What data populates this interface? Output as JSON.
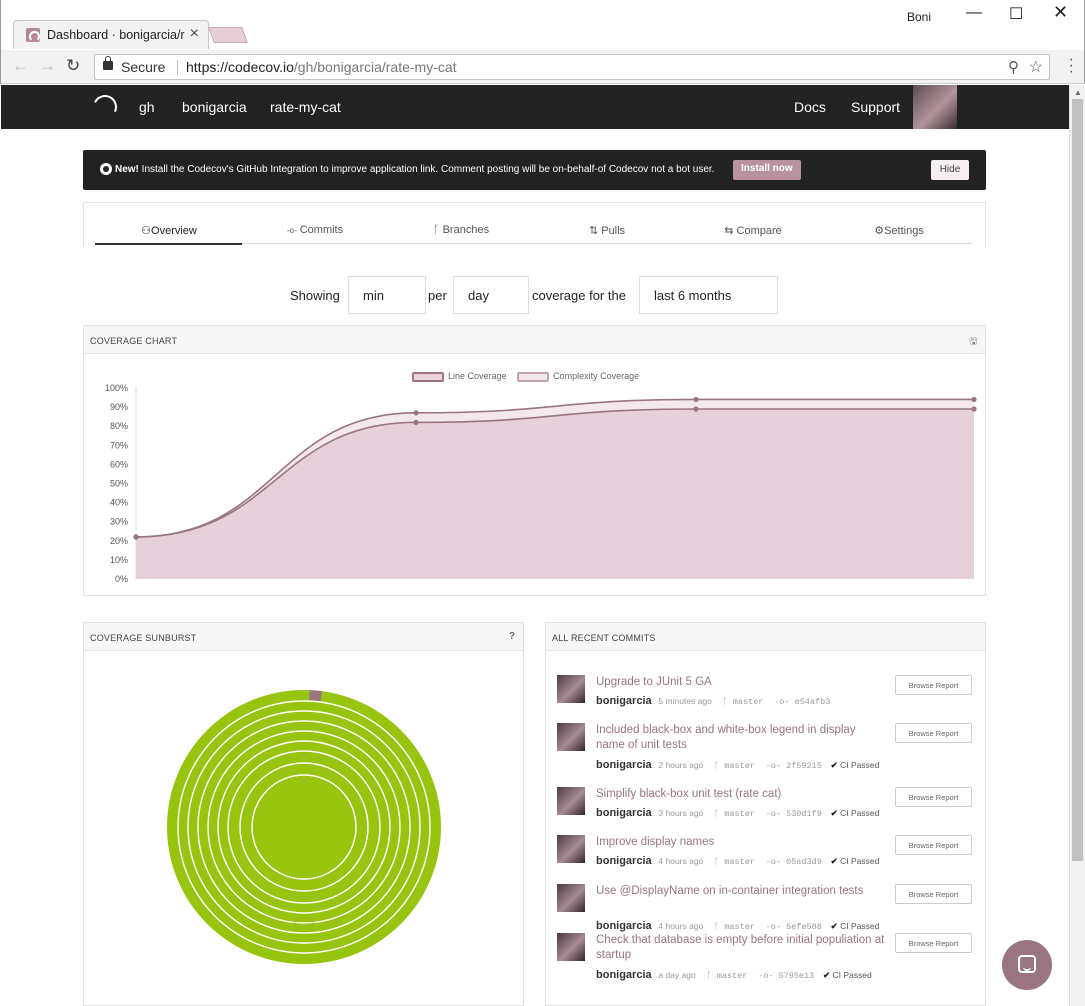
{
  "browser": {
    "tab_title": "Dashboard · bonigarcia/r",
    "user": "Boni",
    "secure_label": "Secure",
    "url_host": "https://codecov.io",
    "url_path": "/gh/bonigarcia/rate-my-cat"
  },
  "navbar": {
    "crumbs": [
      "gh",
      "bonigarcia",
      "rate-my-cat"
    ],
    "docs": "Docs",
    "support": "Support"
  },
  "banner": {
    "new_label": "New!",
    "message": " Install the Codecov's GitHub Integration to improve application link. Comment posting will be on-behalf-of Codecov not a bot user.",
    "install_label": "Install now",
    "hide_label": "Hide"
  },
  "tabs": [
    {
      "label": "Overview",
      "icon": "dashboard-icon",
      "glyph": "⚇",
      "active": true
    },
    {
      "label": "Commits",
      "icon": "commit-icon",
      "glyph": "-o-",
      "active": false
    },
    {
      "label": "Branches",
      "icon": "branch-icon",
      "glyph": "ᚴ",
      "active": false
    },
    {
      "label": "Pulls",
      "icon": "pull-request-icon",
      "glyph": "⇅",
      "active": false
    },
    {
      "label": "Compare",
      "icon": "compare-icon",
      "glyph": "⇆",
      "active": false
    },
    {
      "label": "Settings",
      "icon": "gear-icon",
      "glyph": "⚙",
      "active": false
    }
  ],
  "filters": {
    "showing": "Showing",
    "aggregate": "min",
    "per": "per",
    "interval": "day",
    "coverage_for": "coverage for the",
    "range": "last 6 months"
  },
  "coverage_chart": {
    "heading": "COVERAGE CHART",
    "save_icon": "save-icon"
  },
  "chart_data": {
    "type": "area",
    "title": "",
    "series": [
      {
        "name": "Line Coverage",
        "values": [
          22,
          87,
          94,
          94
        ]
      },
      {
        "name": "Complexity Coverage",
        "values": [
          22,
          82,
          89,
          89
        ]
      }
    ],
    "x": [
      0,
      1,
      2,
      3
    ],
    "xlabel": "",
    "ylabel": "",
    "ylim": [
      0,
      100
    ],
    "yticks": [
      "100%",
      "90%",
      "80%",
      "70%",
      "60%",
      "50%",
      "40%",
      "30%",
      "20%",
      "10%",
      "0%"
    ],
    "grid": false,
    "legend": "top-center",
    "colors": {
      "line": "#9a7480",
      "fill": "#e6d0d9",
      "fill_light": "#f3e8ec"
    }
  },
  "sunburst": {
    "heading": "COVERAGE SUNBURST",
    "help_icon": "help-icon",
    "colors": {
      "covered": "#97c40f",
      "partial": "#9a7480",
      "ring_gap": "#ffffff"
    }
  },
  "commits": {
    "heading": "ALL RECENT COMMITS",
    "browse_label": "Browse Report",
    "items": [
      {
        "title": "Upgrade to JUnit 5 GA",
        "author": "bonigarcia",
        "time": "5 minutes ago",
        "branch": "master",
        "sha": "e54afb3",
        "ci": ""
      },
      {
        "title": "Included black-box and white-box legend in display name of unit tests",
        "author": "bonigarcia",
        "time": "2 hours ago",
        "branch": "master",
        "sha": "2f59215",
        "ci": "CI Passed"
      },
      {
        "title": "Simplify black-box unit test (rate cat)",
        "author": "bonigarcia",
        "time": "3 hours ago",
        "branch": "master",
        "sha": "530d1f9",
        "ci": "CI Passed"
      },
      {
        "title": "Improve display names",
        "author": "bonigarcia",
        "time": "4 hours ago",
        "branch": "master",
        "sha": "05ad3d9",
        "ci": "CI Passed"
      },
      {
        "title": "Use @DisplayName on in-container integration tests",
        "author": "bonigarcia",
        "time": "4 hours ago",
        "branch": "master",
        "sha": "5efe588",
        "ci": "CI Passed"
      },
      {
        "title": "Check that database is empty before initial populiation at startup",
        "author": "bonigarcia",
        "time": "a day ago",
        "branch": "master",
        "sha": "5795e13",
        "ci": "CI Passed"
      }
    ]
  }
}
